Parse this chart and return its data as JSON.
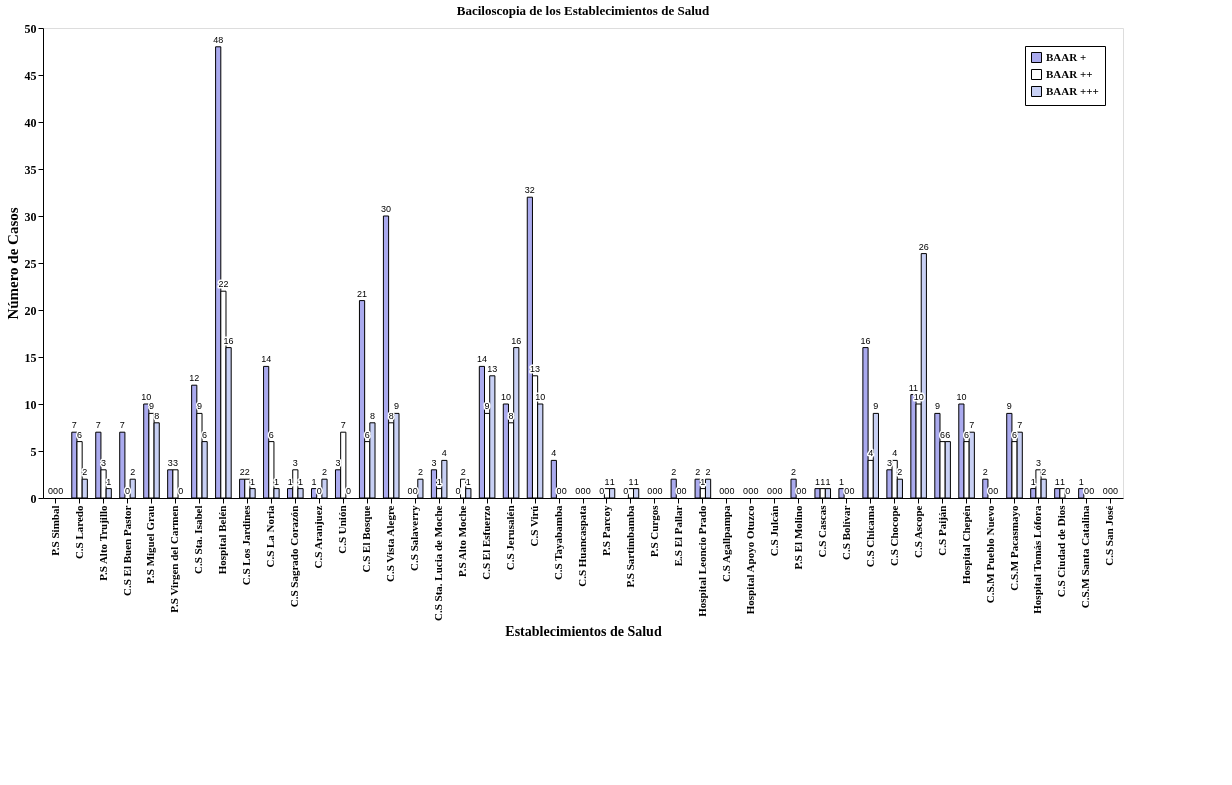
{
  "chart_data": {
    "type": "bar",
    "title": "Baciloscopia de los Establecimientos de Salud",
    "xlabel": "Establecimientos de Salud",
    "ylabel": "Número de Casos",
    "categories": [
      "P.S Simbal",
      "C.S Laredo",
      "P.S Alto Trujillo",
      "C.S El Buen Pastor",
      "P.S Miguel Grau",
      "P.S Virgen del Carmen",
      "C.S Sta. Isabel",
      "Hospital Belén",
      "C.S Los Jardines",
      "C.S La Noria",
      "C.S Sagrado Corazón",
      "C.S Aranjuez",
      "C.S Unión",
      "C.S El Bosque",
      "C.S Vista Alegre",
      "C.S Salaverry",
      "C.S Sta. Lucia de Moche",
      "P.S Alto Moche",
      "C.S El Esfuerzo",
      "C.S Jerusalén",
      "C.S Virú",
      "C.S Tayabamba",
      "C.S Huancaspata",
      "P.S Parcoy",
      "P.S Sartimbamba",
      "P.S Curgos",
      "E.S El Pallar",
      "Hospital Leoncio Prado",
      "C.S Agallpampa",
      "Hospital Apoyo Otuzco",
      "C.S Julcán",
      "P.S El Molino",
      "C.S Cascas",
      "C.S Bolívar",
      "C.S Chicama",
      "C.S Chocope",
      "C.S Ascope",
      "C.S Paiján",
      "Hospital Chepén",
      "C.S.M Pueblo Nuevo",
      "C.S.M Pacasmayo",
      "Hospital Tomás Lófora",
      "C.S Ciudad de Dios",
      "C.S.M Santa Catalina",
      "C.S San José"
    ],
    "series": [
      {
        "name": "BAAR +",
        "color": "#aaaaee",
        "values": [
          0,
          7,
          7,
          7,
          10,
          3,
          12,
          48,
          2,
          14,
          1,
          1,
          3,
          21,
          30,
          0,
          3,
          0,
          14,
          10,
          32,
          4,
          0,
          0,
          0,
          0,
          2,
          2,
          0,
          0,
          0,
          2,
          1,
          1,
          16,
          3,
          11,
          9,
          10,
          2,
          9,
          1,
          1,
          1,
          0
        ]
      },
      {
        "name": "BAAR ++",
        "color": "#ffffff",
        "values": [
          0,
          6,
          3,
          0,
          9,
          3,
          9,
          22,
          2,
          6,
          3,
          0,
          7,
          6,
          8,
          0,
          1,
          2,
          9,
          8,
          13,
          0,
          0,
          1,
          1,
          0,
          0,
          1,
          0,
          0,
          0,
          0,
          1,
          0,
          4,
          4,
          10,
          6,
          6,
          0,
          6,
          3,
          1,
          0,
          0
        ]
      },
      {
        "name": "BAAR +++",
        "color": "#c8d0f4",
        "values": [
          0,
          2,
          1,
          2,
          8,
          0,
          6,
          16,
          1,
          1,
          1,
          2,
          0,
          8,
          9,
          2,
          4,
          1,
          13,
          16,
          10,
          0,
          0,
          1,
          1,
          0,
          0,
          2,
          0,
          0,
          0,
          0,
          1,
          0,
          9,
          2,
          26,
          6,
          7,
          0,
          7,
          2,
          0,
          0,
          0
        ]
      }
    ],
    "ylim": [
      0,
      50
    ],
    "yticks": [
      0,
      5,
      10,
      15,
      20,
      25,
      30,
      35,
      40,
      45,
      50
    ],
    "grid": false,
    "legend": "top right",
    "data_labels": true
  }
}
